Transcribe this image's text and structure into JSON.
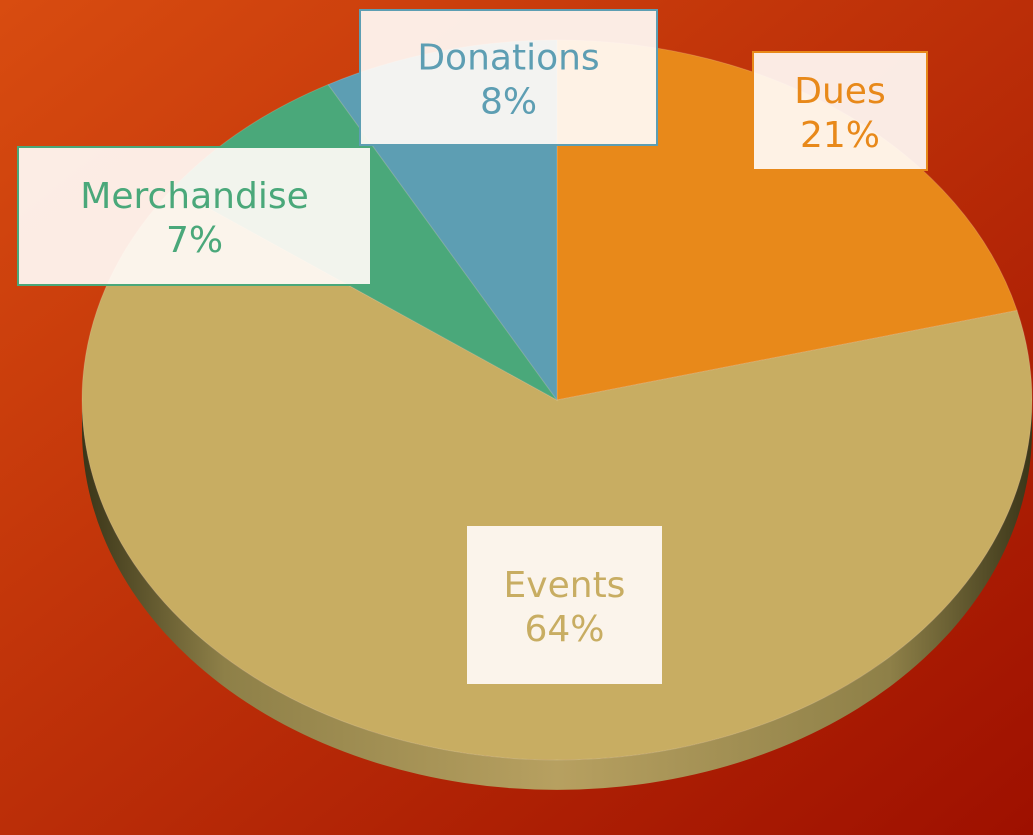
{
  "chart_data": {
    "type": "pie",
    "categories": [
      "Dues",
      "Events",
      "Merchandise",
      "Donations"
    ],
    "values": [
      21,
      64,
      7,
      8
    ],
    "value_labels": [
      "21%",
      "64%",
      "7%",
      "8%"
    ],
    "colors": [
      "#e8891a",
      "#c8ad62",
      "#4aa87a",
      "#5d9eb3"
    ]
  }
}
